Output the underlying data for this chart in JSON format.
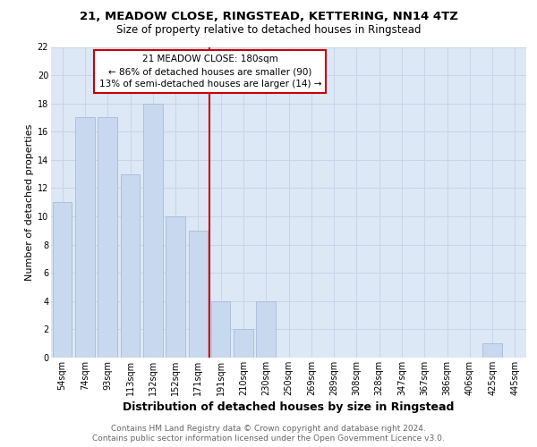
{
  "title1": "21, MEADOW CLOSE, RINGSTEAD, KETTERING, NN14 4TZ",
  "title2": "Size of property relative to detached houses in Ringstead",
  "xlabel": "Distribution of detached houses by size in Ringstead",
  "ylabel": "Number of detached properties",
  "categories": [
    "54sqm",
    "74sqm",
    "93sqm",
    "113sqm",
    "132sqm",
    "152sqm",
    "171sqm",
    "191sqm",
    "210sqm",
    "230sqm",
    "250sqm",
    "269sqm",
    "289sqm",
    "308sqm",
    "328sqm",
    "347sqm",
    "367sqm",
    "386sqm",
    "406sqm",
    "425sqm",
    "445sqm"
  ],
  "values": [
    11,
    17,
    17,
    13,
    18,
    10,
    9,
    4,
    2,
    4,
    0,
    0,
    0,
    0,
    0,
    0,
    0,
    0,
    0,
    1,
    0
  ],
  "bar_color": "#c8d8ee",
  "bar_edge_color": "#aabbd8",
  "red_line_index": 7,
  "annotation_title": "21 MEADOW CLOSE: 180sqm",
  "annotation_line1": "← 86% of detached houses are smaller (90)",
  "annotation_line2": "13% of semi-detached houses are larger (14) →",
  "annotation_box_color": "#ffffff",
  "annotation_border_color": "#cc0000",
  "red_line_color": "#cc0000",
  "grid_color": "#c8d4e8",
  "plot_bg_color": "#dce8f5",
  "fig_bg_color": "#ffffff",
  "footnote1": "Contains HM Land Registry data © Crown copyright and database right 2024.",
  "footnote2": "Contains public sector information licensed under the Open Government Licence v3.0.",
  "ylim": [
    0,
    22
  ],
  "yticks": [
    0,
    2,
    4,
    6,
    8,
    10,
    12,
    14,
    16,
    18,
    20,
    22
  ],
  "title1_fontsize": 9.5,
  "title2_fontsize": 8.5,
  "ylabel_fontsize": 8,
  "xlabel_fontsize": 9,
  "tick_fontsize": 7,
  "footnote_fontsize": 6.5,
  "annot_fontsize": 7.5
}
